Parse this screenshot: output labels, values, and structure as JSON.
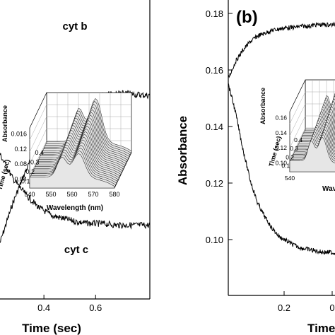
{
  "chart_data": [
    {
      "panel": "a",
      "type": "line",
      "xlabel": "Time (sec)",
      "xticks": [
        "0.4",
        "0.6"
      ],
      "xlim": [
        0.23,
        0.81
      ],
      "series": [
        {
          "name": "cyt b",
          "x": [
            0.23,
            0.28,
            0.33,
            0.38,
            0.43,
            0.48,
            0.53,
            0.58,
            0.63,
            0.68,
            0.73,
            0.78,
            0.81
          ],
          "y": [
            0.585,
            0.61,
            0.63,
            0.647,
            0.66,
            0.668,
            0.673,
            0.676,
            0.677,
            0.678,
            0.678,
            0.677,
            0.677
          ]
        },
        {
          "name": "cyt c",
          "x": [
            0.23,
            0.28,
            0.33,
            0.38,
            0.43,
            0.48,
            0.53,
            0.58,
            0.63,
            0.68,
            0.73,
            0.78,
            0.81
          ],
          "y": [
            0.64,
            0.625,
            0.615,
            0.607,
            0.602,
            0.6,
            0.598,
            0.597,
            0.597,
            0.596,
            0.596,
            0.596,
            0.596
          ]
        }
      ],
      "inset": {
        "type": "surface3d",
        "xlabel": "Wavelength (nm)",
        "xticks": [
          "540",
          "550",
          "560",
          "570",
          "580"
        ],
        "ylabel": "Time (sec)",
        "yticks": [
          "0.4",
          "0.3",
          "0.2",
          "0.1"
        ],
        "zlabel": "Absorbance",
        "zticks": [
          "0.016",
          "0.12",
          "0.08",
          "0.04"
        ]
      }
    },
    {
      "panel": "b",
      "type": "line",
      "title": "(b)",
      "ylabel": "Absorbance",
      "xlabel": "Time",
      "xticks": [
        "0.2",
        "0"
      ],
      "ylim": [
        0.083,
        0.186
      ],
      "yticks": [
        "0.18",
        "0.16",
        "0.14",
        "0.12",
        "0.10"
      ],
      "series": [
        {
          "x": [
            0.0,
            0.02,
            0.04,
            0.06,
            0.08,
            0.1,
            0.12,
            0.14,
            0.16,
            0.18,
            0.2,
            0.22,
            0.24,
            0.26,
            0.28,
            0.3
          ],
          "y": [
            0.157,
            0.163,
            0.167,
            0.17,
            0.172,
            0.173,
            0.174,
            0.1745,
            0.175,
            0.175,
            0.1755,
            0.1755,
            0.176,
            0.176,
            0.176,
            0.176
          ]
        },
        {
          "x": [
            0.0,
            0.02,
            0.04,
            0.06,
            0.08,
            0.1,
            0.12,
            0.14,
            0.16,
            0.18,
            0.2,
            0.22,
            0.24,
            0.26,
            0.28,
            0.3
          ],
          "y": [
            0.155,
            0.145,
            0.132,
            0.121,
            0.113,
            0.108,
            0.104,
            0.101,
            0.0995,
            0.098,
            0.097,
            0.0965,
            0.096,
            0.0955,
            0.0955,
            0.095
          ]
        }
      ],
      "inset": {
        "type": "surface3d",
        "xlabel": "Wav",
        "xticks": [
          "540"
        ],
        "ylabel": "Time (sec)",
        "yticks": [
          "0.4",
          "0.3",
          "0.2",
          "0.1"
        ],
        "zlabel": "Absorbance",
        "zticks": [
          "0.16",
          "0.14",
          "0.12",
          "0.10"
        ]
      }
    }
  ]
}
